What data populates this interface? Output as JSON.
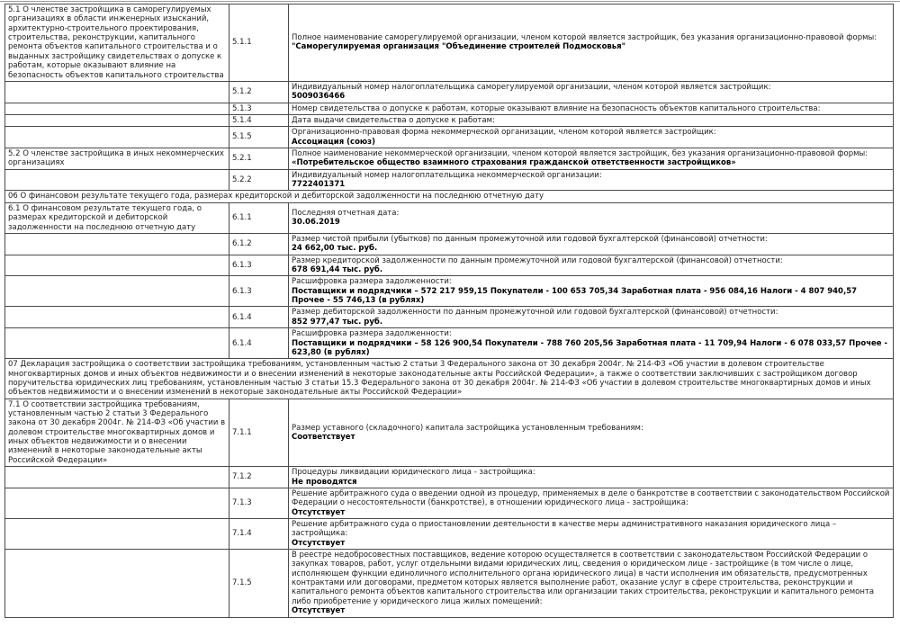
{
  "colors": {
    "background": "#ffffff",
    "border": "#4a4a4a",
    "text": "#1c1c1c",
    "value_text": "#000000",
    "top_rule": "#9b9b9b"
  },
  "table": {
    "rows": [
      {
        "left": "5.1 О членстве застройщика в саморегулируемых организациях в области инженерных изысканий, архитектурно-строительного проектирования, строительства, реконструкции, капитального ремонта объектов капитального строительства и о выданных застройщику свидетельствах о допуске к работам, которые оказывают влияние на безопасность объектов капитального строительства",
        "num": "5.1.1",
        "label": "Полное наименование саморегулируемой организации, членом которой является застройщик, без указания организационно-правовой формы:",
        "value": "\"Саморегулируемая организация \"Объединение строителей Подмосковья\""
      },
      {
        "left": "",
        "num": "5.1.2",
        "label": "Индивидуальный номер налогоплательщика саморегулируемой организации, членом которой является застройщик:",
        "value": "5009036466"
      },
      {
        "left": "",
        "num": "5.1.3",
        "label": "Номер свидетельства о допуске к работам, которые оказывают влияние на безопасность объектов капитального строительства:"
      },
      {
        "left": "",
        "num": "5.1.4",
        "label": "Дата выдачи свидетельства о допуске к работам:"
      },
      {
        "left": "",
        "num": "5.1.5",
        "label": "Организационно-правовая форма некоммерческой организации, членом которой является застройщик:",
        "value": "Ассоциация (союз)"
      },
      {
        "left": "5.2 О членстве застройщика в иных некоммерческих организациях",
        "num": "5.2.1",
        "label": "Полное наименование некоммерческой организации, членом которой является застройщик, без указания организационно-правовой формы:",
        "value": "«Потребительское общество взаимного страхования гражданской ответственности застройщиков»"
      },
      {
        "left": "",
        "num": "5.2.2",
        "label": "Индивидуальный номер налогоплательщика некоммерческой организации:",
        "value": "7722401371"
      },
      {
        "section": "06 О финансовом результате текущего года, размерах кредиторской и дебиторской задолженности на последнюю отчетную дату"
      },
      {
        "left": "6.1 О финансовом результате текущего года, о размерах кредиторской и дебиторской задолженности на последнюю отчетную дату",
        "num": "6.1.1",
        "label": "Последняя отчетная дата:",
        "value": "30.06.2019"
      },
      {
        "left": "",
        "num": "6.1.2",
        "label": "Размер чистой прибыли (убытков) по данным промежуточной или годовой бухгалтерской (финансовой) отчетности:",
        "value": "24 662,00 тыс. руб."
      },
      {
        "left": "",
        "num": "6.1.3",
        "label": "Размер кредиторской задолженности по данным промежуточной или годовой бухгалтерской (финансовой) отчетности:",
        "value": "678 691,44 тыс. руб."
      },
      {
        "left": "",
        "num": "6.1.3",
        "label": "Расшифровка размера задолженности:",
        "value": "Поставщики и подрядчики – 572 217 959,15 Покупатели - 100 653 705,34 Заработная плата - 956 084,16 Налоги - 4 807 940,57 Прочее - 55 746,13 (в рублях)"
      },
      {
        "left": "",
        "num": "6.1.4",
        "label": "Размер дебиторской задолженности по данным промежуточной или годовой бухгалтерской (финансовой) отчетности:",
        "value": "852 977,47 тыс. руб."
      },
      {
        "left": "",
        "num": "6.1.4",
        "label": "Расшифровка размера задолженности:",
        "value": "Поставщики и подрядчики – 58 126 900,54 Покупатели - 788 760 205,56 Заработная плата - 11 709,94 Налоги - 6 078 033,57 Прочее - 623,80 (в рублях)"
      },
      {
        "section": "07 Декларация застройщика о соответствии застройщика требованиям, установленным частью 2 статьи 3 Федерального закона от 30 декабря 2004г. № 214-ФЗ «Об участии в долевом строительстве многоквартирных домов и иных объектов недвижимости и о внесении изменений в некоторые законодательные акты Российской Федерации», а также о соответствии заключивших с застройщиком договор поручительства юридических лиц требованиям, установленным частью 3 статьи 15.3 Федерального закона от 30 декабря 2004г. № 214-ФЗ «Об участии в долевом строительстве многоквартирных домов и иных объектов недвижимости и о внесении изменений в некоторые законодательные акты Российской Федерации»"
      },
      {
        "left": "7.1 О соответствии застройщика требованиям, установленным частью 2 статьи 3 Федерального закона от 30 декабря 2004г. № 214-ФЗ «Об участии в долевом строительстве многоквартирных домов и иных объектов недвижимости и о внесении изменений в некоторые законодательные акты Российской Федерации»",
        "num": "7.1.1",
        "label": "Размер уставного (складочного) капитала застройщика установленным требованиям:",
        "value": "Соответствует"
      },
      {
        "left": "",
        "num": "7.1.2",
        "label": "Процедуры ликвидации юридического лица - застройщика:",
        "value": "Не проводятся"
      },
      {
        "left": "",
        "num": "7.1.3",
        "label": "Решение арбитражного суда о введении одной из процедур, применяемых в деле о банкротстве в соответствии с законодательством Российской Федерации о несостоятельности (банкротстве), в отношении юридического лица - застройщика:",
        "value": "Отсутствует"
      },
      {
        "left": "",
        "num": "7.1.4",
        "label": "Решение арбитражного суда о приостановлении деятельности в качестве меры административного наказания юридического лица – застройщика:",
        "value": "Отсутствует"
      },
      {
        "left": "",
        "num": "7.1.5",
        "label": "В реестре недобросовестных поставщиков, ведение которою осуществляется в соответствии с законодательством Российской Федерации о закупках товаров, работ, услуг отдельными видами юридических лиц, сведения о юридическом лице - застройщике (в том числе о лице, исполняющем функции единоличного исполнительного органа юридического лица) в части исполнения им обязательств, предусмотренных контрактами или договорами, предметом которых является выполнение работ, оказание услуг в сфере строительства, реконструкции и капитального ремонта объектов капитального строительства или организации таких строительства, реконструкции и капитального ремонта либо приобретение у юридического лица жилых помещений:",
        "value": "Отсутствует"
      }
    ]
  }
}
